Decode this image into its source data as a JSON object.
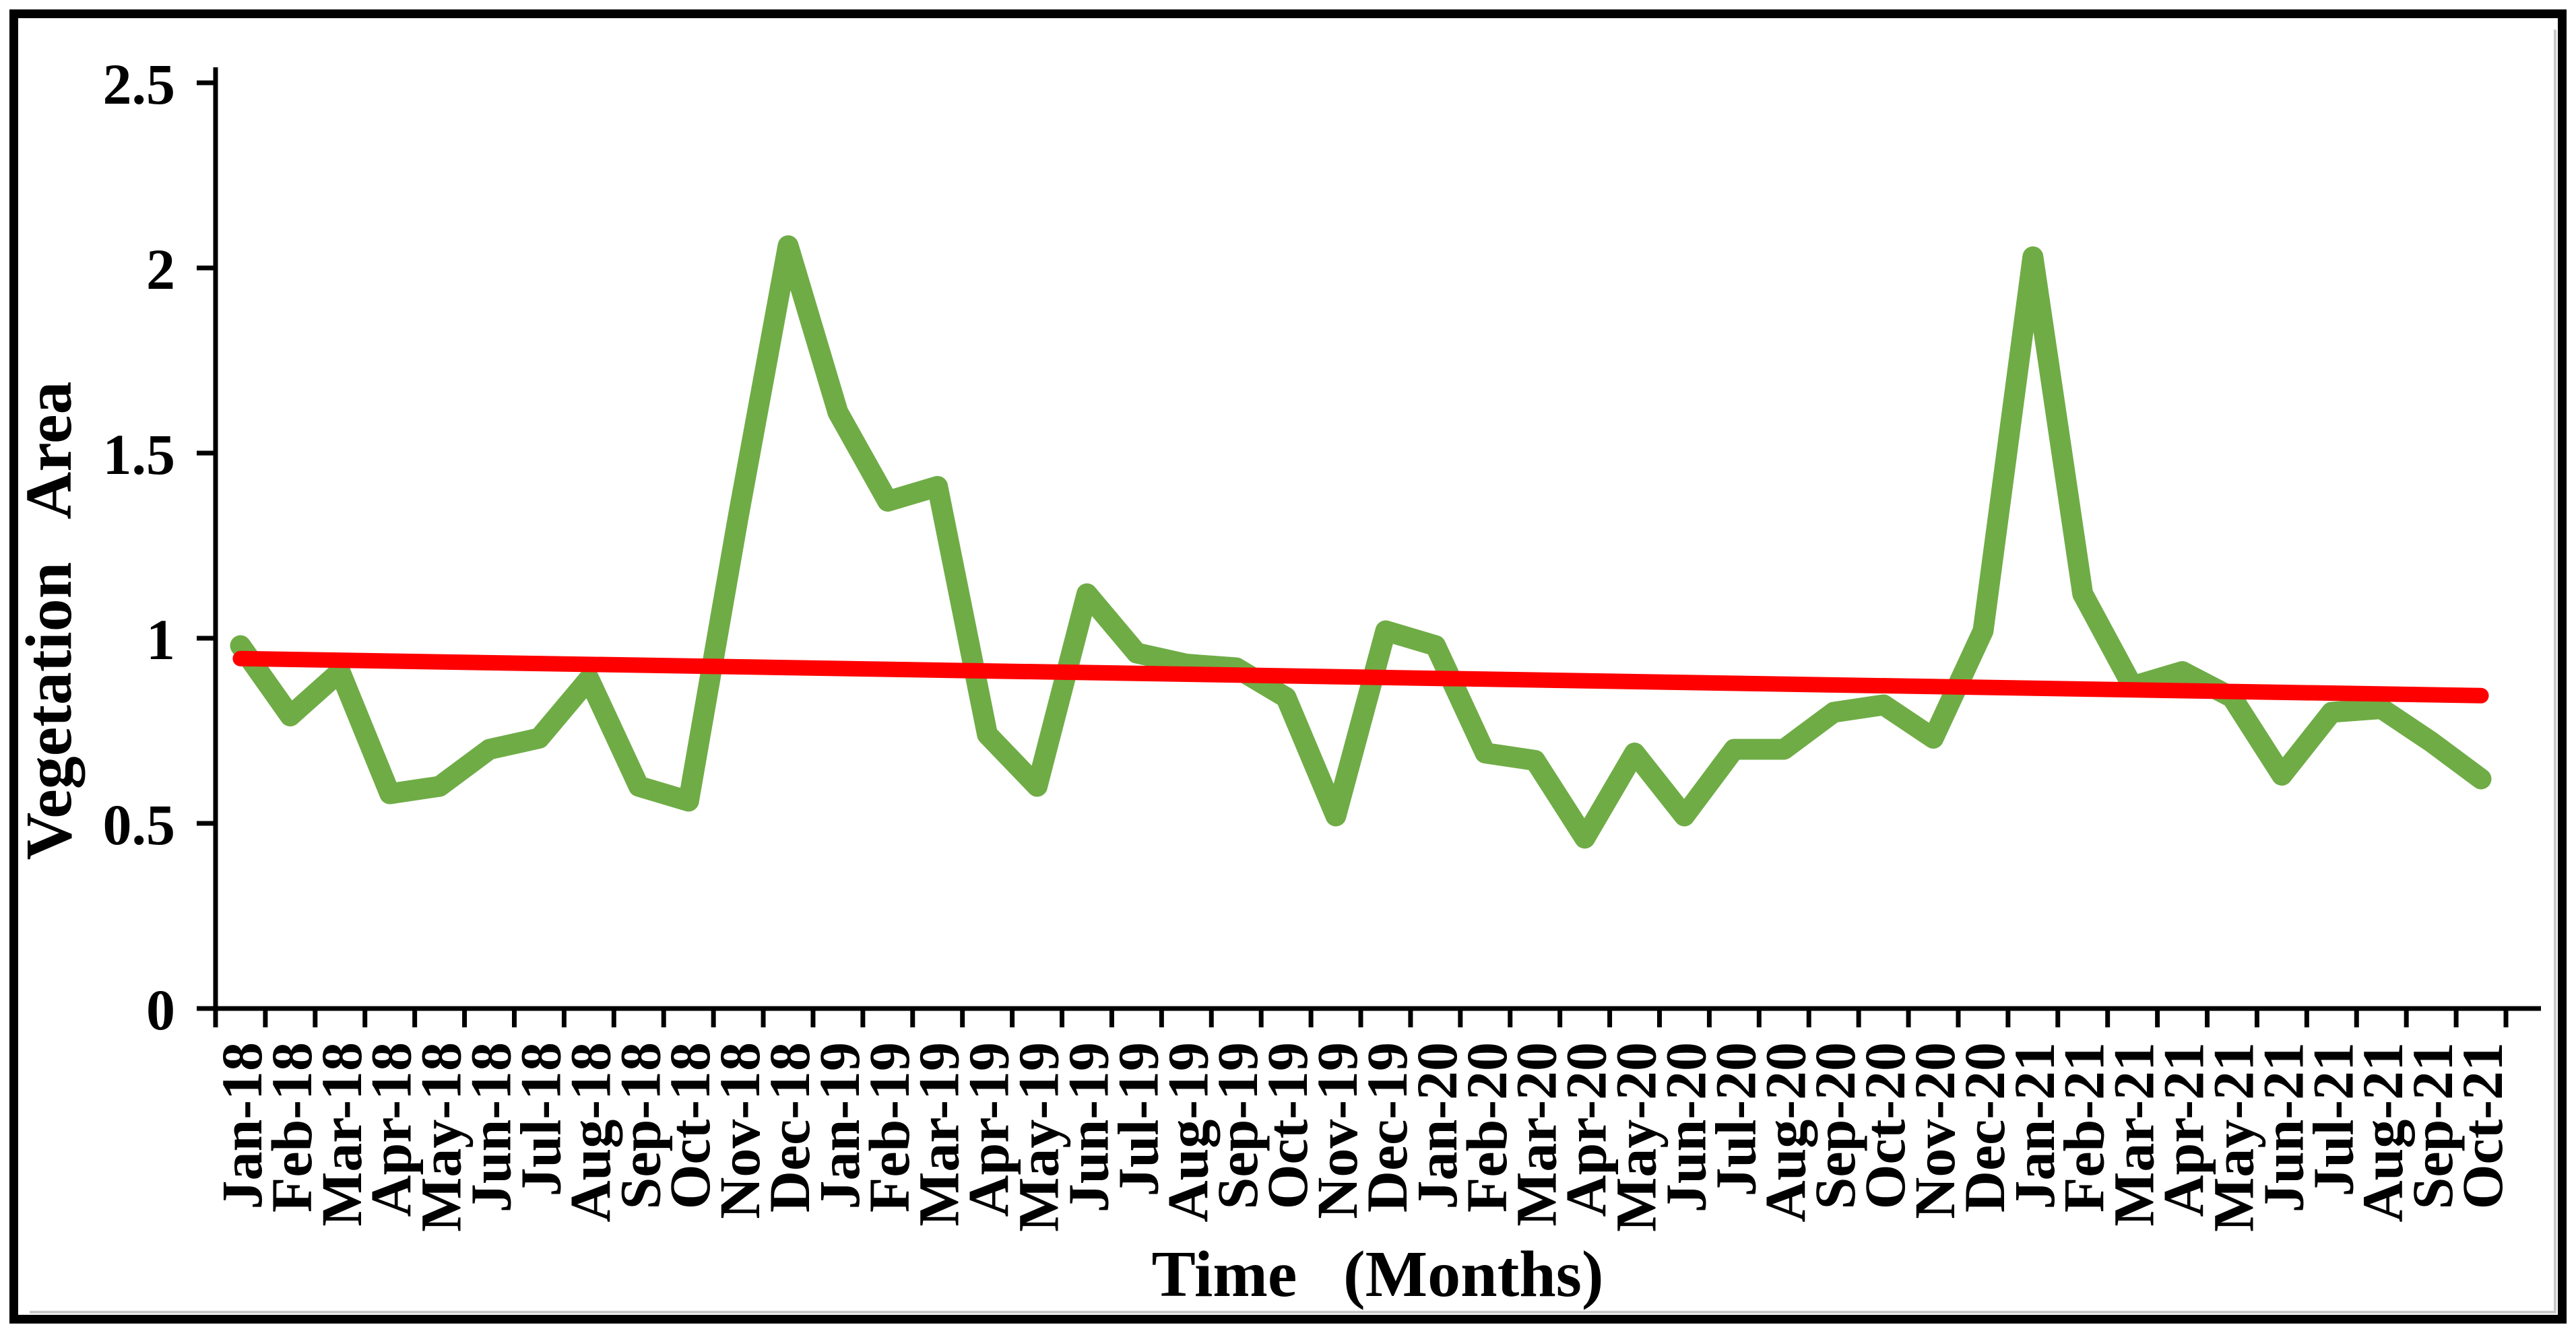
{
  "figure": {
    "background": "#FFFFFF",
    "frame_color": "#000000",
    "shadow_color": "#C9C9C9",
    "axis_color": "#000000"
  },
  "chart_data": {
    "type": "line",
    "title": "",
    "xlabel": "Time (Months)",
    "ylabel": "Vegetation Area",
    "ylim": [
      0,
      2.5
    ],
    "y_ticks": [
      "0",
      "0.5",
      "1",
      "1.5",
      "2",
      "2.5"
    ],
    "grid": false,
    "legend_position": "none",
    "categories": [
      "Jan-18",
      "Feb-18",
      "Mar-18",
      "Apr-18",
      "May-18",
      "Jun-18",
      "Jul-18",
      "Aug-18",
      "Sep-18",
      "Oct-18",
      "Nov-18",
      "Dec-18",
      "Jan-19",
      "Feb-19",
      "Mar-19",
      "Apr-19",
      "May-19",
      "Jun-19",
      "Jul-19",
      "Aug-19",
      "Sep-19",
      "Oct-19",
      "Nov-19",
      "Dec-19",
      "Jan-20",
      "Feb-20",
      "Mar-20",
      "Apr-20",
      "May-20",
      "Jun-20",
      "Jul-20",
      "Aug-20",
      "Sep-20",
      "Oct-20",
      "Nov-20",
      "Dec-20",
      "Jan-21",
      "Feb-21",
      "Mar-21",
      "Apr-21",
      "May-21",
      "Jun-21",
      "Jul-21",
      "Aug-21",
      "Sep-21",
      "Oct-21"
    ],
    "series": [
      {
        "name": "Vegetation Area",
        "kind": "data-line",
        "color": "#6FAC46",
        "stroke_width": 31,
        "values": [
          0.98,
          0.79,
          0.91,
          0.58,
          0.6,
          0.7,
          0.73,
          0.89,
          0.6,
          0.56,
          1.33,
          2.06,
          1.61,
          1.37,
          1.41,
          0.74,
          0.6,
          1.12,
          0.96,
          0.93,
          0.92,
          0.84,
          0.52,
          1.02,
          0.98,
          0.69,
          0.67,
          0.46,
          0.69,
          0.52,
          0.7,
          0.7,
          0.8,
          0.82,
          0.73,
          1.02,
          2.03,
          1.12,
          0.87,
          0.91,
          0.84,
          0.63,
          0.8,
          0.81,
          0.72,
          0.62
        ]
      },
      {
        "name": "Linear trendline",
        "kind": "trend-line",
        "color": "#FF0000",
        "stroke_width": 23,
        "start_value": 0.945,
        "end_value": 0.845
      }
    ]
  }
}
